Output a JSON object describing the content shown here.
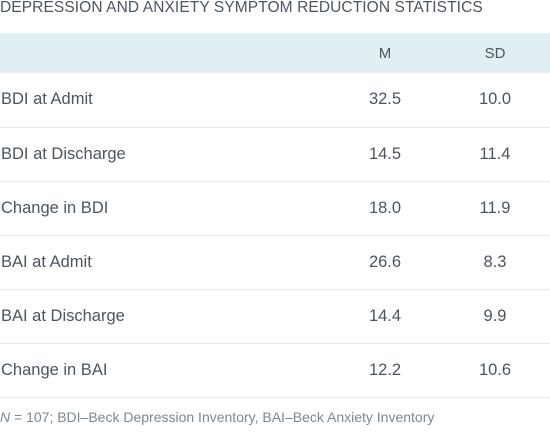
{
  "title": "DEPRESSION AND ANXIETY SYMPTOM REDUCTION STATISTICS",
  "columns": {
    "label": "",
    "m": "M",
    "sd": "SD"
  },
  "rows": [
    {
      "label": "BDI at Admit",
      "m": "32.5",
      "sd": "10.0"
    },
    {
      "label": "BDI at Discharge",
      "m": "14.5",
      "sd": "11.4"
    },
    {
      "label": "Change in BDI",
      "m": "18.0",
      "sd": "11.9"
    },
    {
      "label": "BAI at Admit",
      "m": "26.6",
      "sd": "8.3"
    },
    {
      "label": "BAI at Discharge",
      "m": "14.4",
      "sd": "9.9"
    },
    {
      "label": "Change in BAI",
      "m": "12.2",
      "sd": "10.6"
    }
  ],
  "note": {
    "n_symbol": "N",
    "text": " = 107; BDI–Beck Depression Inventory, BAI–Beck Anxiety Inventory"
  },
  "colors": {
    "header_bg": "#e1eff3",
    "text": "#4a5560",
    "note_text": "#7d878f",
    "row_divider": "#e6eaec"
  }
}
